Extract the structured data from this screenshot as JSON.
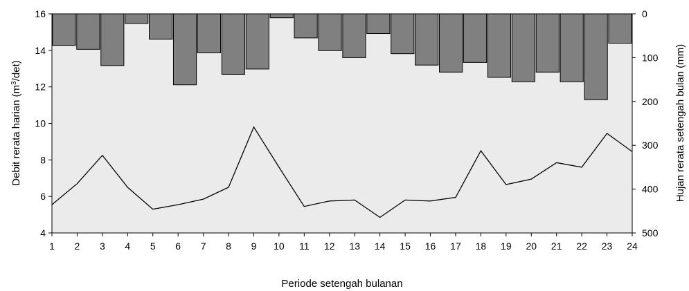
{
  "chart_data": {
    "type": "bar+line",
    "xlabel": "Periode setengah bulanan",
    "ylabel_left": {
      "pre": "Debit rerata harian (m",
      "sup": "3",
      "post": "/det)"
    },
    "ylabel_right": "Hujan rerata setengah bulan (mm)",
    "x_categories": [
      "1",
      "2",
      "3",
      "4",
      "5",
      "6",
      "7",
      "8",
      "9",
      "10",
      "11",
      "12",
      "13",
      "14",
      "15",
      "16",
      "17",
      "18",
      "19",
      "20",
      "21",
      "22",
      "23",
      "24"
    ],
    "left_axis": {
      "min": 4,
      "max": 16,
      "ticks": [
        4,
        6,
        8,
        10,
        12,
        14,
        16
      ]
    },
    "right_axis": {
      "min": 0,
      "max": 500,
      "inverted": true,
      "ticks": [
        0,
        100,
        200,
        300,
        400,
        500
      ]
    },
    "line_series": {
      "axis": "left",
      "values": [
        5.55,
        6.7,
        8.25,
        6.5,
        5.3,
        5.55,
        5.85,
        6.5,
        9.8,
        7.6,
        5.45,
        5.75,
        5.8,
        4.85,
        5.8,
        5.75,
        5.95,
        8.5,
        6.65,
        6.95,
        7.85,
        7.6,
        9.45,
        8.45
      ]
    },
    "bar_series": {
      "axis": "right",
      "values": [
        72,
        81,
        118,
        22,
        58,
        162,
        89,
        138,
        126,
        9,
        55,
        84,
        100,
        45,
        91,
        117,
        133,
        111,
        145,
        155,
        133,
        155,
        196,
        67
      ]
    },
    "colors": {
      "plot_background": "#ebebeb",
      "bar_fill": "#808080",
      "bar_stroke": "#000000",
      "line": "#000000"
    },
    "grid": false
  }
}
